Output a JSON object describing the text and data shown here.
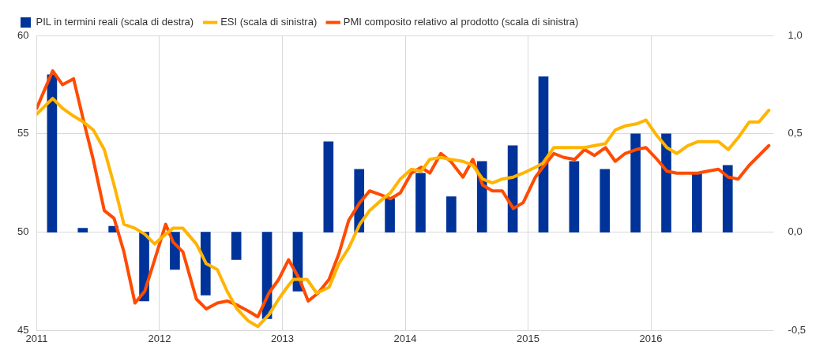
{
  "chart_data": {
    "type": "line",
    "xlim": [
      2011,
      2017
    ],
    "xticks": [
      2011,
      2012,
      2013,
      2014,
      2015,
      2016
    ],
    "ylim": [
      45,
      60
    ],
    "yticks": [
      45,
      50,
      55,
      60
    ],
    "y2lim": [
      -0.5,
      1.0
    ],
    "y2ticks": [
      {
        "value": -0.5,
        "label": "-0,5"
      },
      {
        "value": 0,
        "label": "0,0"
      },
      {
        "value": 0.5,
        "label": "0,5"
      },
      {
        "value": 1.0,
        "label": "1,0"
      }
    ],
    "grid": true,
    "legend": "top left",
    "series": [
      {
        "name": "PIL in termini reali (scala di destra)",
        "type": "bar",
        "axis": "y2",
        "color": "#003399",
        "x": [
          2011.125,
          2011.375,
          2011.625,
          2011.875,
          2012.125,
          2012.375,
          2012.625,
          2012.875,
          2013.125,
          2013.375,
          2013.625,
          2013.875,
          2014.125,
          2014.375,
          2014.625,
          2014.875,
          2015.125,
          2015.375,
          2015.625,
          2015.875,
          2016.125,
          2016.375,
          2016.625
        ],
        "values": [
          0.8,
          0.02,
          0.03,
          -0.35,
          -0.19,
          -0.32,
          -0.14,
          -0.44,
          -0.3,
          0.46,
          0.32,
          0.17,
          0.3,
          0.18,
          0.36,
          0.44,
          0.79,
          0.36,
          0.32,
          0.5,
          0.5,
          0.3,
          0.34
        ]
      },
      {
        "name": "ESI (scala di sinistra)",
        "color": "#ffb400",
        "x": [
          2011.0,
          2011.13,
          2011.21,
          2011.3,
          2011.38,
          2011.46,
          2011.55,
          2011.63,
          2011.71,
          2011.8,
          2011.88,
          2011.96,
          2012.05,
          2012.11,
          2012.19,
          2012.3,
          2012.38,
          2012.47,
          2012.55,
          2012.63,
          2012.72,
          2012.8,
          2012.89,
          2012.97,
          2013.05,
          2013.09,
          2013.2,
          2013.28,
          2013.38,
          2013.46,
          2013.54,
          2013.63,
          2013.71,
          2013.8,
          2013.88,
          2013.96,
          2014.05,
          2014.13,
          2014.2,
          2014.29,
          2014.37,
          2014.47,
          2014.55,
          2014.63,
          2014.71,
          2014.79,
          2014.88,
          2014.96,
          2015.06,
          2015.12,
          2015.21,
          2015.29,
          2015.38,
          2015.46,
          2015.54,
          2015.63,
          2015.71,
          2015.79,
          2015.88,
          2015.96,
          2016.05,
          2016.13,
          2016.21,
          2016.3,
          2016.38,
          2016.46,
          2016.55,
          2016.63,
          2016.71,
          2016.8,
          2016.88,
          2016.96
        ],
        "values": [
          56.0,
          56.8,
          56.3,
          55.9,
          55.6,
          55.2,
          54.2,
          52.4,
          50.4,
          50.2,
          49.9,
          49.4,
          49.9,
          50.2,
          50.2,
          49.4,
          48.4,
          48.1,
          47.0,
          46.1,
          45.5,
          45.2,
          45.8,
          46.6,
          47.3,
          47.6,
          47.6,
          46.9,
          47.2,
          48.4,
          49.2,
          50.4,
          51.1,
          51.6,
          52.0,
          52.7,
          53.2,
          53.1,
          53.7,
          53.8,
          53.7,
          53.6,
          53.4,
          52.7,
          52.5,
          52.7,
          52.8,
          53.0,
          53.3,
          53.5,
          54.3,
          54.3,
          54.3,
          54.3,
          54.4,
          54.5,
          55.2,
          55.4,
          55.5,
          55.7,
          54.9,
          54.3,
          54.0,
          54.4,
          54.6,
          54.6,
          54.6,
          54.2,
          54.8,
          55.6,
          55.6,
          56.2
        ]
      },
      {
        "name": "PMI composito relativo al prodotto (scala di sinistra)",
        "color": "#ff4b00",
        "x": [
          2011.0,
          2011.13,
          2011.21,
          2011.3,
          2011.38,
          2011.46,
          2011.55,
          2011.63,
          2011.71,
          2011.8,
          2011.88,
          2011.96,
          2012.05,
          2012.11,
          2012.19,
          2012.3,
          2012.38,
          2012.47,
          2012.55,
          2012.63,
          2012.72,
          2012.8,
          2012.89,
          2012.97,
          2013.05,
          2013.14,
          2013.21,
          2013.29,
          2013.38,
          2013.46,
          2013.54,
          2013.63,
          2013.71,
          2013.8,
          2013.88,
          2013.96,
          2014.05,
          2014.13,
          2014.2,
          2014.29,
          2014.37,
          2014.47,
          2014.55,
          2014.63,
          2014.71,
          2014.79,
          2014.88,
          2014.96,
          2015.06,
          2015.12,
          2015.21,
          2015.29,
          2015.38,
          2015.46,
          2015.54,
          2015.63,
          2015.71,
          2015.79,
          2015.88,
          2015.96,
          2016.05,
          2016.13,
          2016.21,
          2016.3,
          2016.38,
          2016.46,
          2016.55,
          2016.63,
          2016.71,
          2016.8,
          2016.88,
          2016.96
        ],
        "values": [
          56.3,
          58.2,
          57.5,
          57.8,
          55.7,
          53.7,
          51.1,
          50.7,
          49.0,
          46.4,
          47.0,
          48.6,
          50.4,
          49.5,
          49.0,
          46.6,
          46.1,
          46.4,
          46.5,
          46.3,
          46.0,
          45.7,
          46.9,
          47.6,
          48.6,
          47.6,
          46.5,
          46.9,
          47.6,
          48.9,
          50.6,
          51.5,
          52.1,
          51.9,
          51.7,
          52.0,
          53.0,
          53.3,
          53.0,
          54.0,
          53.6,
          52.8,
          53.7,
          52.4,
          52.1,
          52.1,
          51.2,
          51.5,
          52.8,
          53.3,
          54.0,
          53.8,
          53.7,
          54.2,
          53.9,
          54.3,
          53.6,
          54.0,
          54.2,
          54.3,
          53.7,
          53.1,
          53.0,
          53.0,
          53.0,
          53.1,
          53.2,
          52.8,
          52.7,
          53.4,
          53.9,
          54.4
        ]
      }
    ]
  }
}
